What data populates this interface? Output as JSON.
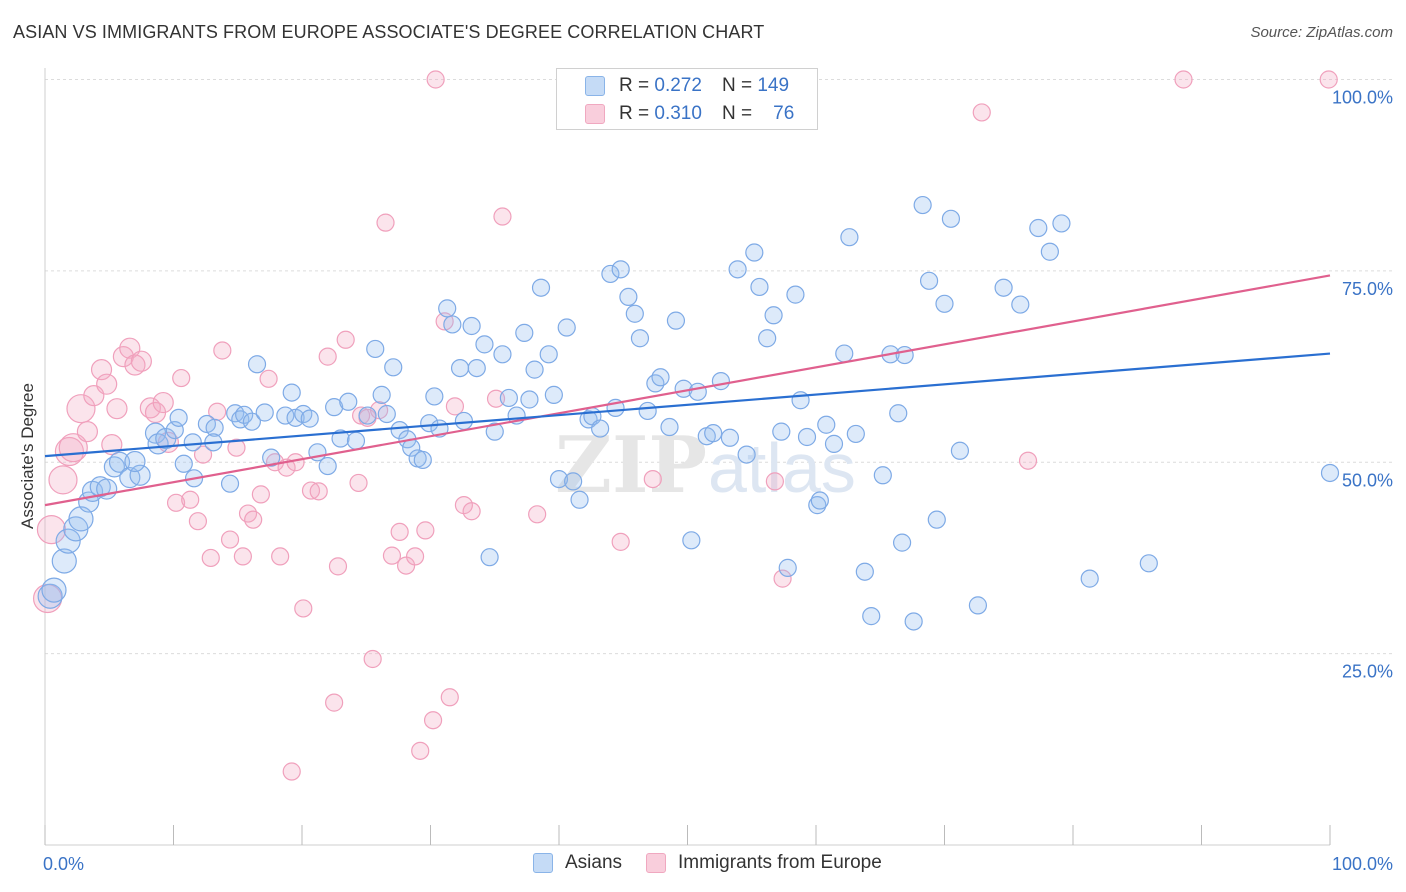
{
  "header": {
    "title": "ASIAN VS IMMIGRANTS FROM EUROPE ASSOCIATE'S DEGREE CORRELATION CHART",
    "source": "Source: ZipAtlas.com"
  },
  "legend": {
    "rows": [
      {
        "r_label": "R =",
        "r_value": "0.272",
        "n_label": "N =",
        "n_value": "149"
      },
      {
        "r_label": "R =",
        "r_value": "0.310",
        "n_label": "N =",
        "n_value": "76"
      }
    ]
  },
  "chart_data": {
    "type": "scatter",
    "title": "ASIAN VS IMMIGRANTS FROM EUROPE ASSOCIATE'S DEGREE CORRELATION CHART",
    "xlabel": "",
    "ylabel": "Associate's Degree",
    "xlim": [
      0,
      100
    ],
    "ylim": [
      0,
      104
    ],
    "x_tick_labels": [
      "0.0%",
      "100.0%"
    ],
    "y_tick_labels": [
      "25.0%",
      "50.0%",
      "75.0%",
      "100.0%"
    ],
    "y_ticks": [
      25,
      50,
      75,
      100
    ],
    "grid": true,
    "legend_position": "top-center",
    "watermark": "ZIPatlas",
    "colors": {
      "Asians": "#8ab4e8",
      "Immigrants from Europe": "#f0a8c0",
      "asians_line": "#2a6fd1",
      "europe_line": "#e0608e"
    },
    "series": [
      {
        "name": "Asians",
        "trend": [
          [
            0,
            50.8
          ],
          [
            100,
            64.2
          ]
        ],
        "points": [
          [
            0.4,
            32.5
          ],
          [
            0.7,
            33.3
          ],
          [
            1.5,
            37.1
          ],
          [
            1.8,
            39.7
          ],
          [
            2.4,
            41.3
          ],
          [
            2.8,
            42.6
          ],
          [
            3.4,
            44.8
          ],
          [
            3.7,
            46.2
          ],
          [
            4.3,
            46.8
          ],
          [
            4.8,
            46.5
          ],
          [
            5.4,
            49.4
          ],
          [
            5.8,
            50.0
          ],
          [
            6.6,
            48.0
          ],
          [
            7.4,
            48.3
          ],
          [
            7.0,
            50.1
          ],
          [
            8.6,
            53.8
          ],
          [
            8.8,
            52.4
          ],
          [
            9.4,
            53.1
          ],
          [
            10.1,
            54.2
          ],
          [
            10.4,
            55.8
          ],
          [
            10.8,
            49.8
          ],
          [
            11.6,
            47.9
          ],
          [
            11.5,
            52.6
          ],
          [
            12.6,
            55.0
          ],
          [
            13.2,
            54.5
          ],
          [
            13.1,
            52.6
          ],
          [
            14.4,
            47.2
          ],
          [
            14.8,
            56.4
          ],
          [
            15.2,
            55.6
          ],
          [
            15.5,
            56.2
          ],
          [
            16.1,
            55.3
          ],
          [
            16.5,
            62.8
          ],
          [
            17.1,
            56.5
          ],
          [
            17.6,
            50.6
          ],
          [
            18.7,
            56.1
          ],
          [
            19.2,
            59.1
          ],
          [
            19.5,
            55.8
          ],
          [
            20.1,
            56.3
          ],
          [
            20.6,
            55.7
          ],
          [
            21.2,
            51.3
          ],
          [
            22.0,
            49.5
          ],
          [
            22.5,
            57.2
          ],
          [
            23.0,
            53.1
          ],
          [
            23.6,
            57.9
          ],
          [
            24.2,
            52.8
          ],
          [
            25.1,
            56.1
          ],
          [
            25.7,
            64.8
          ],
          [
            26.2,
            58.8
          ],
          [
            26.6,
            56.3
          ],
          [
            27.1,
            62.4
          ],
          [
            27.6,
            54.2
          ],
          [
            28.2,
            53.0
          ],
          [
            28.5,
            51.9
          ],
          [
            29.0,
            50.5
          ],
          [
            29.4,
            50.3
          ],
          [
            29.9,
            55.1
          ],
          [
            30.3,
            58.6
          ],
          [
            30.7,
            54.4
          ],
          [
            31.3,
            70.1
          ],
          [
            31.7,
            68.0
          ],
          [
            32.3,
            62.3
          ],
          [
            32.6,
            55.4
          ],
          [
            33.2,
            67.8
          ],
          [
            33.6,
            62.3
          ],
          [
            34.2,
            65.4
          ],
          [
            34.6,
            37.6
          ],
          [
            35.0,
            54.0
          ],
          [
            35.6,
            64.1
          ],
          [
            36.1,
            58.4
          ],
          [
            36.7,
            56.1
          ],
          [
            37.3,
            66.9
          ],
          [
            37.7,
            58.2
          ],
          [
            38.1,
            62.1
          ],
          [
            38.6,
            72.8
          ],
          [
            39.2,
            64.1
          ],
          [
            39.6,
            58.8
          ],
          [
            40.0,
            47.8
          ],
          [
            40.6,
            67.6
          ],
          [
            41.1,
            47.5
          ],
          [
            41.6,
            45.1
          ],
          [
            42.3,
            55.6
          ],
          [
            42.6,
            56.0
          ],
          [
            43.2,
            54.4
          ],
          [
            44.0,
            74.6
          ],
          [
            44.4,
            57.1
          ],
          [
            44.8,
            75.2
          ],
          [
            45.4,
            71.6
          ],
          [
            45.9,
            69.4
          ],
          [
            46.3,
            66.2
          ],
          [
            46.9,
            56.7
          ],
          [
            47.5,
            60.3
          ],
          [
            47.9,
            61.1
          ],
          [
            48.6,
            54.6
          ],
          [
            49.1,
            68.5
          ],
          [
            49.7,
            59.6
          ],
          [
            50.3,
            39.8
          ],
          [
            50.8,
            59.2
          ],
          [
            51.5,
            53.4
          ],
          [
            52.0,
            53.8
          ],
          [
            52.6,
            60.6
          ],
          [
            53.3,
            53.2
          ],
          [
            53.9,
            75.2
          ],
          [
            54.6,
            51.0
          ],
          [
            55.2,
            77.4
          ],
          [
            55.6,
            72.9
          ],
          [
            56.2,
            66.2
          ],
          [
            56.7,
            69.2
          ],
          [
            57.3,
            54.0
          ],
          [
            57.8,
            36.2
          ],
          [
            58.4,
            71.9
          ],
          [
            58.8,
            58.1
          ],
          [
            59.3,
            53.3
          ],
          [
            60.1,
            44.4
          ],
          [
            60.3,
            45.0
          ],
          [
            60.8,
            54.9
          ],
          [
            61.4,
            52.4
          ],
          [
            62.2,
            64.2
          ],
          [
            62.6,
            79.4
          ],
          [
            63.1,
            53.7
          ],
          [
            63.8,
            35.7
          ],
          [
            64.3,
            29.9
          ],
          [
            65.2,
            48.3
          ],
          [
            65.8,
            64.1
          ],
          [
            66.4,
            56.4
          ],
          [
            66.9,
            64.0
          ],
          [
            66.7,
            39.5
          ],
          [
            67.6,
            29.2
          ],
          [
            68.3,
            83.6
          ],
          [
            68.8,
            73.7
          ],
          [
            69.4,
            42.5
          ],
          [
            70.0,
            70.7
          ],
          [
            70.5,
            81.8
          ],
          [
            71.2,
            51.5
          ],
          [
            72.6,
            31.3
          ],
          [
            74.6,
            72.8
          ],
          [
            75.9,
            70.6
          ],
          [
            77.3,
            80.6
          ],
          [
            78.2,
            77.5
          ],
          [
            79.1,
            81.2
          ],
          [
            81.3,
            34.8
          ],
          [
            85.9,
            36.8
          ],
          [
            100.0,
            48.6
          ]
        ],
        "sizes_note": "smaller points at larger x"
      },
      {
        "name": "Immigrants from Europe",
        "trend": [
          [
            0,
            44.4
          ],
          [
            100,
            74.4
          ]
        ],
        "points": [
          [
            0.2,
            32.2
          ],
          [
            0.5,
            41.2
          ],
          [
            1.4,
            47.7
          ],
          [
            1.9,
            51.4
          ],
          [
            2.2,
            51.9
          ],
          [
            2.8,
            57.0
          ],
          [
            3.3,
            54.0
          ],
          [
            3.8,
            58.7
          ],
          [
            4.4,
            62.1
          ],
          [
            4.8,
            60.2
          ],
          [
            5.2,
            52.3
          ],
          [
            5.6,
            57.0
          ],
          [
            6.1,
            63.8
          ],
          [
            6.6,
            64.9
          ],
          [
            7.0,
            62.7
          ],
          [
            7.5,
            63.2
          ],
          [
            8.2,
            57.1
          ],
          [
            8.6,
            56.5
          ],
          [
            9.2,
            57.8
          ],
          [
            9.6,
            52.6
          ],
          [
            10.2,
            44.7
          ],
          [
            10.6,
            61.0
          ],
          [
            11.3,
            45.1
          ],
          [
            11.9,
            42.3
          ],
          [
            12.3,
            51.0
          ],
          [
            12.9,
            37.5
          ],
          [
            13.4,
            56.6
          ],
          [
            13.8,
            64.6
          ],
          [
            14.4,
            39.9
          ],
          [
            14.9,
            51.9
          ],
          [
            15.4,
            37.7
          ],
          [
            15.8,
            43.3
          ],
          [
            16.2,
            42.5
          ],
          [
            16.8,
            45.8
          ],
          [
            17.4,
            60.9
          ],
          [
            17.9,
            50.0
          ],
          [
            18.3,
            37.7
          ],
          [
            18.8,
            49.3
          ],
          [
            19.2,
            9.6
          ],
          [
            19.5,
            50.0
          ],
          [
            20.1,
            30.9
          ],
          [
            20.7,
            46.3
          ],
          [
            21.3,
            46.2
          ],
          [
            22.0,
            63.8
          ],
          [
            22.5,
            18.6
          ],
          [
            22.8,
            36.4
          ],
          [
            23.4,
            66.0
          ],
          [
            24.4,
            47.3
          ],
          [
            24.6,
            56.1
          ],
          [
            25.1,
            55.8
          ],
          [
            25.5,
            24.3
          ],
          [
            26.0,
            56.8
          ],
          [
            26.5,
            81.3
          ],
          [
            27.0,
            37.8
          ],
          [
            27.6,
            40.9
          ],
          [
            28.1,
            36.5
          ],
          [
            28.8,
            37.7
          ],
          [
            29.2,
            12.3
          ],
          [
            29.6,
            41.1
          ],
          [
            30.2,
            16.3
          ],
          [
            31.1,
            68.4
          ],
          [
            31.5,
            19.3
          ],
          [
            31.9,
            57.3
          ],
          [
            32.6,
            44.4
          ],
          [
            33.2,
            43.6
          ],
          [
            35.1,
            58.3
          ],
          [
            35.6,
            82.1
          ],
          [
            38.3,
            43.2
          ],
          [
            44.8,
            39.6
          ],
          [
            47.3,
            47.8
          ],
          [
            56.8,
            47.5
          ],
          [
            57.4,
            34.8
          ],
          [
            72.9,
            95.7
          ],
          [
            76.5,
            50.2
          ],
          [
            88.6,
            100.0
          ],
          [
            99.9,
            100.0
          ],
          [
            30.4,
            100.0
          ]
        ]
      }
    ]
  },
  "bottom_legend": {
    "items": [
      {
        "label": "Asians"
      },
      {
        "label": "Immigrants from Europe"
      }
    ]
  }
}
